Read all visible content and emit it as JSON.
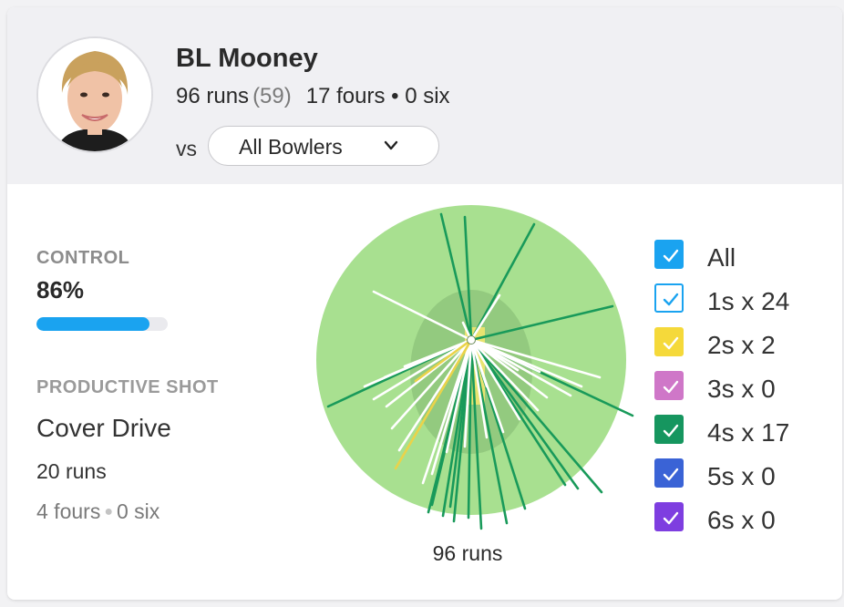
{
  "player": {
    "name": "BL Mooney",
    "runs_text": "96 runs",
    "balls_text": "(59)",
    "boundaries_text": "17 fours • 0 six"
  },
  "filter": {
    "vs_label": "vs",
    "bowler_selected": "All Bowlers"
  },
  "control": {
    "label": "CONTROL",
    "value_text": "86%",
    "percent": 86,
    "bar_color": "#1aa3f0"
  },
  "productive_shot": {
    "label": "PRODUCTIVE SHOT",
    "name": "Cover Drive",
    "runs_text": "20 runs",
    "fours_text": "4 fours",
    "sixes_text": "0 six"
  },
  "wagon_wheel": {
    "total_text": "96 runs",
    "colors": {
      "outfield": "#a8e090",
      "infield": "#8fc57c",
      "pitch": "#e8e370",
      "ones": "#ffffff",
      "twos": "#ead34a",
      "fours": "#199a5a"
    }
  },
  "legend": [
    {
      "label": "All",
      "color": "#1aa3f0",
      "style": "filled",
      "checked": true
    },
    {
      "label": "1s x 24",
      "color": "#1aa3f0",
      "style": "outline",
      "checked": true
    },
    {
      "label": "2s x 2",
      "color": "#f5d93a",
      "style": "filled",
      "checked": true
    },
    {
      "label": "3s x 0",
      "color": "#cf77c8",
      "style": "filled",
      "checked": true
    },
    {
      "label": "4s x 17",
      "color": "#16965f",
      "style": "filled",
      "checked": true
    },
    {
      "label": "5s x 0",
      "color": "#3a63d6",
      "style": "filled",
      "checked": true
    },
    {
      "label": "6s x 0",
      "color": "#7e3ee0",
      "style": "filled",
      "checked": true
    }
  ]
}
